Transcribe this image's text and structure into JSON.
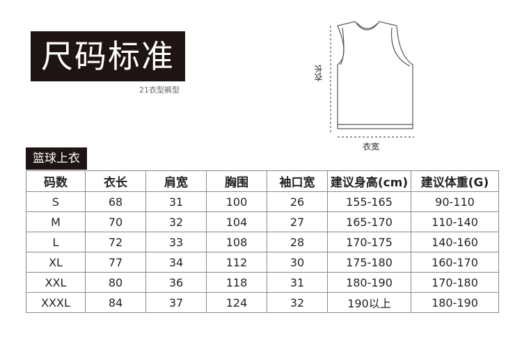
{
  "title": "尺码标准",
  "subtitle": "21衣型裤型",
  "diagram": {
    "length_label": "衣长",
    "width_label": "衣宽"
  },
  "category": "篮球上衣",
  "table": {
    "headers": [
      "码数",
      "衣长",
      "肩宽",
      "胸围",
      "袖口宽",
      "建议身高(cm)",
      "建议体重(G)"
    ],
    "rows": [
      [
        "S",
        "68",
        "31",
        "100",
        "26",
        "155-165",
        "90-110"
      ],
      [
        "M",
        "70",
        "32",
        "104",
        "27",
        "165-170",
        "110-140"
      ],
      [
        "L",
        "72",
        "33",
        "108",
        "28",
        "170-175",
        "140-160"
      ],
      [
        "XL",
        "77",
        "34",
        "112",
        "30",
        "175-180",
        "160-170"
      ],
      [
        "XXL",
        "80",
        "36",
        "118",
        "31",
        "180-190",
        "170-180"
      ],
      [
        "XXXL",
        "84",
        "37",
        "124",
        "32",
        "190以上",
        "180-190"
      ]
    ]
  }
}
